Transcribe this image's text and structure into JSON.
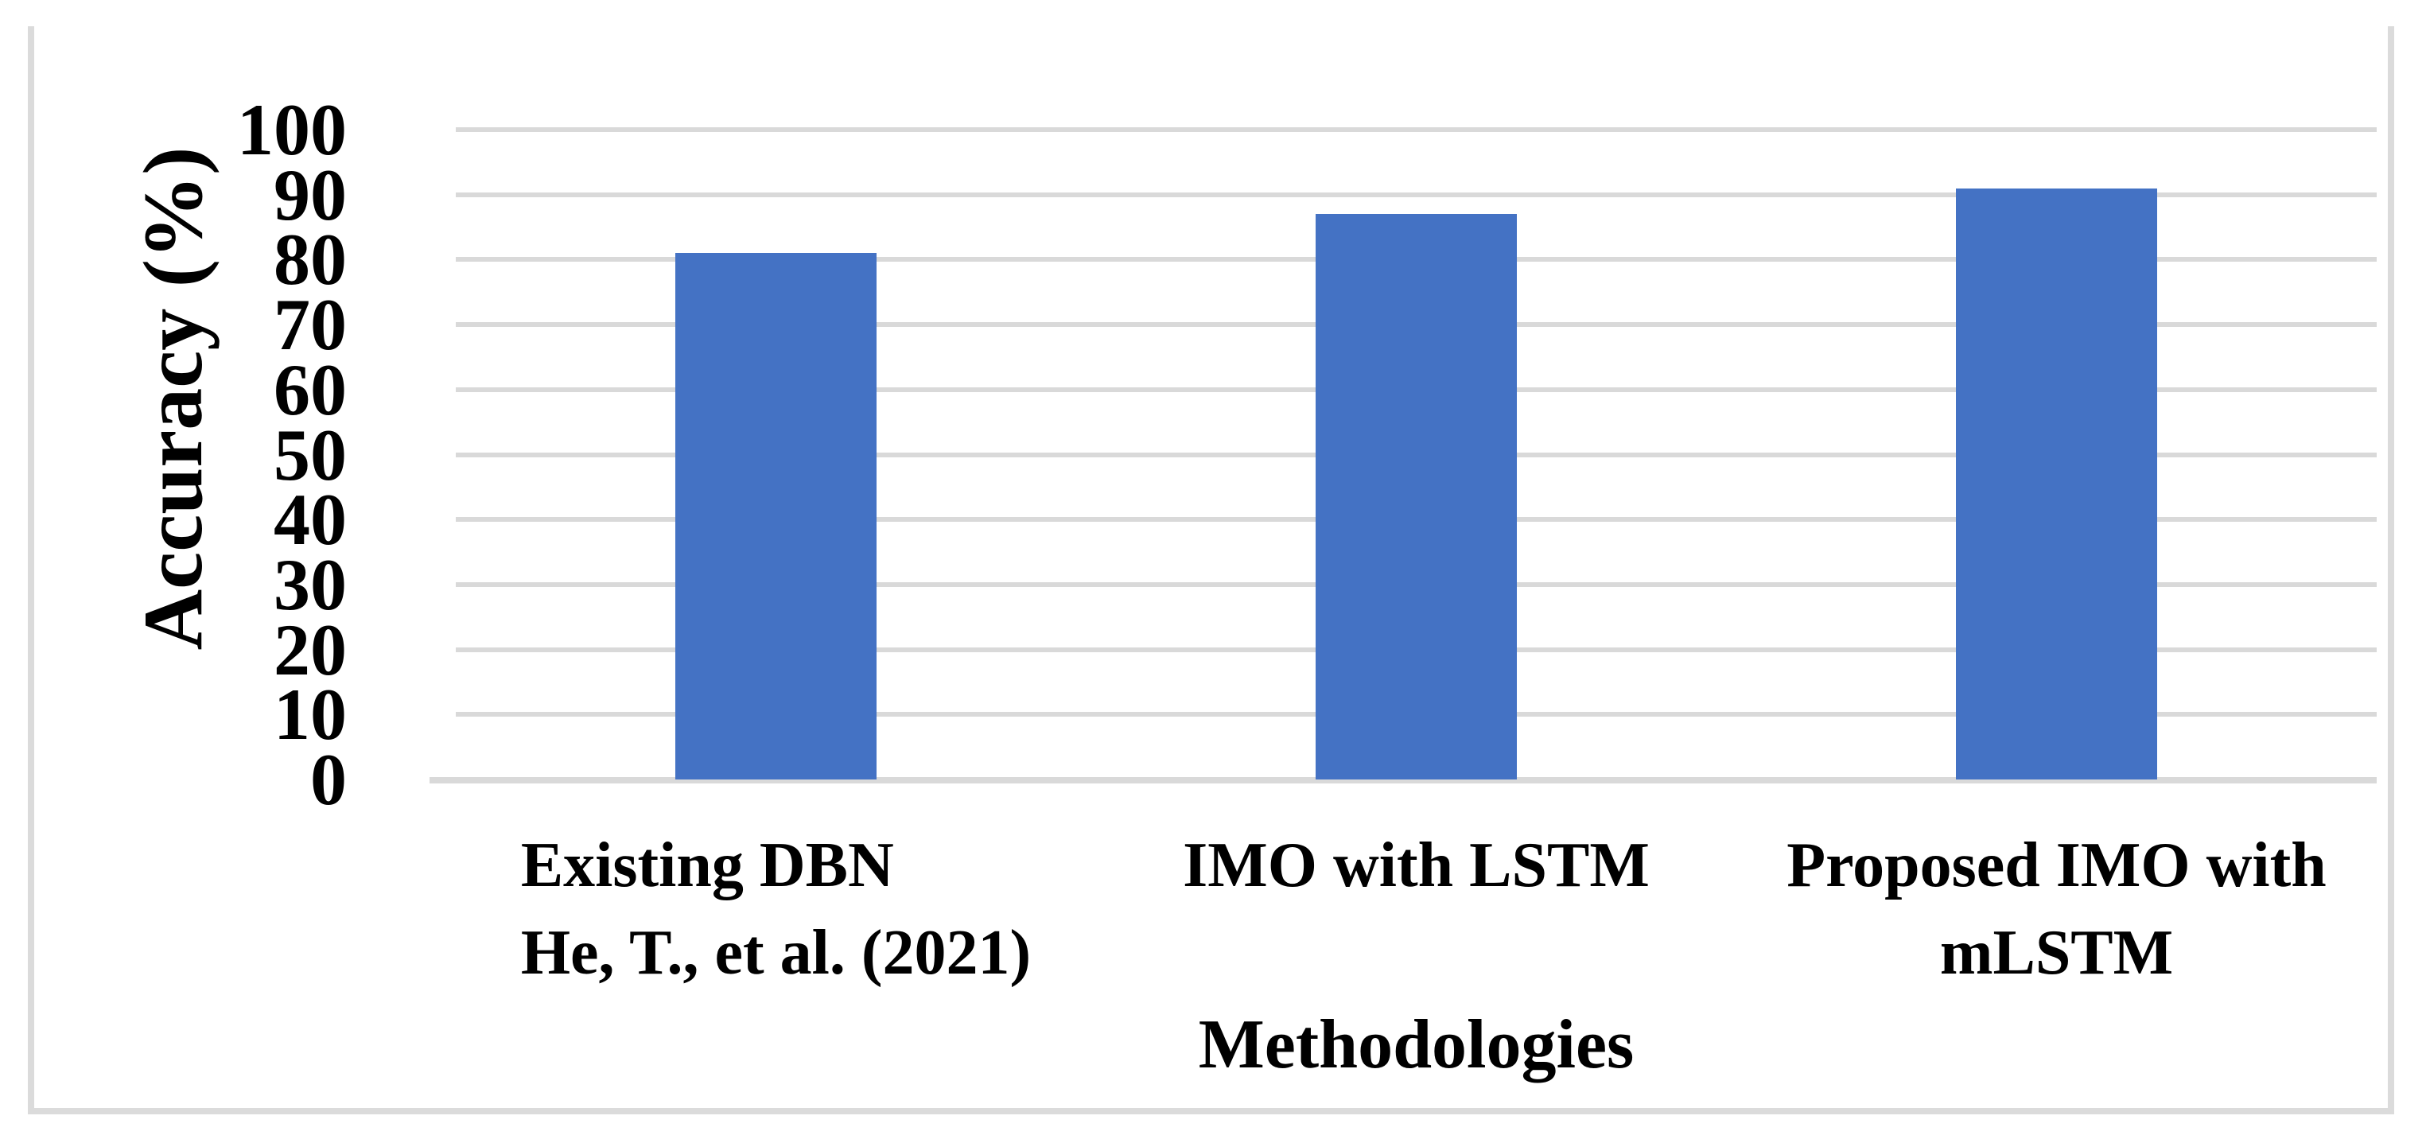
{
  "chart_data": {
    "type": "bar",
    "title": "",
    "categories": [
      "Existing DBN\nHe, T., et al. (2021)",
      "IMO with LSTM",
      "Proposed IMO with\nmLSTM"
    ],
    "values": [
      81,
      87,
      91
    ],
    "xlabel": "Methodologies",
    "ylabel": "Accuracy (%)",
    "ylim": [
      0,
      100
    ],
    "yticks": [
      0,
      10,
      20,
      30,
      40,
      50,
      60,
      70,
      80,
      90,
      100
    ],
    "ytick_labels": [
      "0",
      "10",
      "20",
      "30",
      "40",
      "50",
      "60",
      "70",
      "80",
      "90",
      "100"
    ],
    "grid": "horizontal",
    "legend_position": "none",
    "colors": {
      "bar": "#4472C4",
      "gridline": "#D9D9D9",
      "frame": "#DBDBDB",
      "text": "#000000",
      "background": "#FFFFFF"
    }
  }
}
